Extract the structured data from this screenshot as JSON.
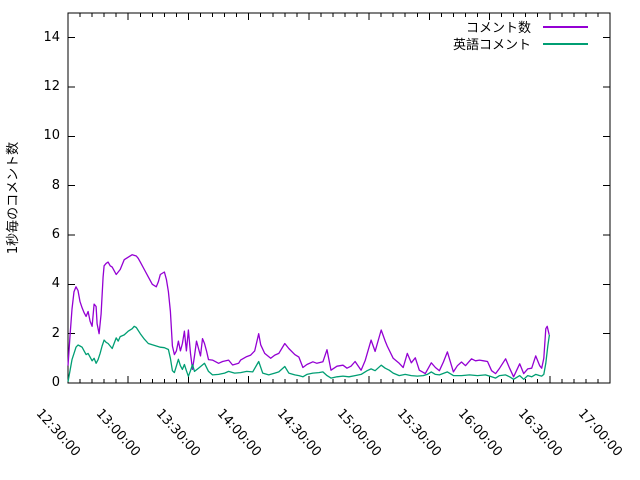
{
  "figure": {
    "background": "#ffffff",
    "frame_color": "#000000",
    "text_color": "#000000"
  },
  "chart_data": {
    "type": "line",
    "title": "",
    "xlabel": "",
    "ylabel": "1秒毎のコメント数",
    "grid": false,
    "legend_position": "top-right-inside",
    "x_ticks": [
      "12:30:00",
      "13:00:00",
      "13:30:00",
      "14:00:00",
      "14:30:00",
      "15:00:00",
      "15:30:00",
      "16:00:00",
      "16:30:00",
      "17:00:00"
    ],
    "x_major_step_minutes": 30,
    "x_minor_step_minutes": 6,
    "xlim_minutes": [
      0,
      270
    ],
    "y_ticks": [
      0,
      2,
      4,
      6,
      8,
      10,
      12,
      14
    ],
    "ylim": [
      0,
      15
    ],
    "series": [
      {
        "name": "コメント数",
        "color": "#9400d3",
        "points": [
          [
            0,
            0.7
          ],
          [
            1,
            1.9
          ],
          [
            2,
            3.0
          ],
          [
            3,
            3.7
          ],
          [
            4,
            3.9
          ],
          [
            5,
            3.75
          ],
          [
            6,
            3.3
          ],
          [
            7,
            3.05
          ],
          [
            8,
            2.85
          ],
          [
            9,
            2.7
          ],
          [
            10,
            2.9
          ],
          [
            11,
            2.5
          ],
          [
            12,
            2.3
          ],
          [
            13,
            3.2
          ],
          [
            14,
            3.1
          ],
          [
            14.5,
            2.4
          ],
          [
            15.5,
            2.0
          ],
          [
            16.5,
            2.8
          ],
          [
            17.5,
            4.3
          ],
          [
            18,
            4.75
          ],
          [
            19,
            4.85
          ],
          [
            20,
            4.9
          ],
          [
            21,
            4.75
          ],
          [
            22,
            4.7
          ],
          [
            24,
            4.4
          ],
          [
            25,
            4.5
          ],
          [
            26,
            4.6
          ],
          [
            27,
            4.8
          ],
          [
            28,
            5.0
          ],
          [
            30,
            5.1
          ],
          [
            32,
            5.2
          ],
          [
            34,
            5.15
          ],
          [
            35,
            5.05
          ],
          [
            36,
            4.9
          ],
          [
            38,
            4.6
          ],
          [
            40,
            4.3
          ],
          [
            42,
            4.0
          ],
          [
            44,
            3.9
          ],
          [
            45,
            4.1
          ],
          [
            46,
            4.4
          ],
          [
            48,
            4.5
          ],
          [
            49,
            4.2
          ],
          [
            50,
            3.7
          ],
          [
            51,
            2.9
          ],
          [
            52,
            1.5
          ],
          [
            53,
            1.15
          ],
          [
            54,
            1.3
          ],
          [
            55,
            1.7
          ],
          [
            56,
            1.3
          ],
          [
            57,
            1.6
          ],
          [
            58,
            2.1
          ],
          [
            59,
            1.3
          ],
          [
            60,
            2.15
          ],
          [
            61,
            1.2
          ],
          [
            62,
            0.55
          ],
          [
            63,
            1.1
          ],
          [
            64,
            1.7
          ],
          [
            65,
            1.4
          ],
          [
            66,
            1.1
          ],
          [
            67,
            1.8
          ],
          [
            68,
            1.6
          ],
          [
            69,
            1.3
          ],
          [
            70,
            0.95
          ],
          [
            72,
            0.93
          ],
          [
            75,
            0.8
          ],
          [
            77,
            0.87
          ],
          [
            80,
            0.93
          ],
          [
            82,
            0.73
          ],
          [
            85,
            0.8
          ],
          [
            86,
            0.93
          ],
          [
            89,
            1.07
          ],
          [
            91,
            1.13
          ],
          [
            93,
            1.3
          ],
          [
            95,
            2.0
          ],
          [
            96,
            1.55
          ],
          [
            98,
            1.2
          ],
          [
            101,
            1.0
          ],
          [
            103,
            1.13
          ],
          [
            105,
            1.2
          ],
          [
            108,
            1.6
          ],
          [
            110,
            1.4
          ],
          [
            113,
            1.15
          ],
          [
            115,
            1.05
          ],
          [
            117,
            0.63
          ],
          [
            119,
            0.75
          ],
          [
            122,
            0.86
          ],
          [
            124,
            0.8
          ],
          [
            127,
            0.86
          ],
          [
            129,
            1.35
          ],
          [
            131,
            0.52
          ],
          [
            134,
            0.68
          ],
          [
            137,
            0.72
          ],
          [
            139,
            0.6
          ],
          [
            141,
            0.68
          ],
          [
            143,
            0.87
          ],
          [
            146,
            0.52
          ],
          [
            148,
            0.9
          ],
          [
            151,
            1.74
          ],
          [
            153,
            1.28
          ],
          [
            156,
            2.15
          ],
          [
            158,
            1.7
          ],
          [
            159,
            1.5
          ],
          [
            162,
            1.0
          ],
          [
            165,
            0.8
          ],
          [
            167,
            0.63
          ],
          [
            169,
            1.2
          ],
          [
            171,
            0.82
          ],
          [
            173,
            1.02
          ],
          [
            175,
            0.52
          ],
          [
            178,
            0.38
          ],
          [
            181,
            0.82
          ],
          [
            183,
            0.63
          ],
          [
            185,
            0.5
          ],
          [
            187,
            0.85
          ],
          [
            189,
            1.26
          ],
          [
            192,
            0.45
          ],
          [
            194,
            0.7
          ],
          [
            196,
            0.85
          ],
          [
            198,
            0.7
          ],
          [
            201,
            0.98
          ],
          [
            203,
            0.9
          ],
          [
            205,
            0.93
          ],
          [
            207,
            0.9
          ],
          [
            209,
            0.87
          ],
          [
            211,
            0.5
          ],
          [
            213,
            0.38
          ],
          [
            215,
            0.6
          ],
          [
            218,
            0.98
          ],
          [
            220,
            0.6
          ],
          [
            222,
            0.25
          ],
          [
            225,
            0.78
          ],
          [
            227,
            0.38
          ],
          [
            229,
            0.57
          ],
          [
            231,
            0.6
          ],
          [
            233,
            1.1
          ],
          [
            235,
            0.7
          ],
          [
            236,
            0.6
          ],
          [
            237,
            1.0
          ],
          [
            238,
            2.2
          ],
          [
            238.7,
            2.3
          ],
          [
            239.7,
            1.95
          ]
        ]
      },
      {
        "name": "英語コメント",
        "color": "#009e73",
        "points": [
          [
            0,
            0.05
          ],
          [
            1,
            0.5
          ],
          [
            2,
            0.95
          ],
          [
            3,
            1.2
          ],
          [
            4,
            1.45
          ],
          [
            5,
            1.54
          ],
          [
            6,
            1.5
          ],
          [
            7,
            1.45
          ],
          [
            8,
            1.3
          ],
          [
            9,
            1.15
          ],
          [
            10,
            1.2
          ],
          [
            11,
            1.05
          ],
          [
            12,
            0.9
          ],
          [
            13,
            1.0
          ],
          [
            14,
            0.8
          ],
          [
            15,
            0.95
          ],
          [
            16,
            1.2
          ],
          [
            17,
            1.5
          ],
          [
            18,
            1.74
          ],
          [
            19,
            1.65
          ],
          [
            20,
            1.6
          ],
          [
            22,
            1.4
          ],
          [
            24,
            1.83
          ],
          [
            25,
            1.7
          ],
          [
            26,
            1.88
          ],
          [
            28,
            1.95
          ],
          [
            30,
            2.1
          ],
          [
            32,
            2.2
          ],
          [
            33,
            2.3
          ],
          [
            34,
            2.25
          ],
          [
            36,
            2.0
          ],
          [
            38,
            1.78
          ],
          [
            40,
            1.6
          ],
          [
            42,
            1.55
          ],
          [
            44,
            1.5
          ],
          [
            46,
            1.45
          ],
          [
            48,
            1.43
          ],
          [
            50,
            1.36
          ],
          [
            51,
            1.0
          ],
          [
            52,
            0.5
          ],
          [
            53,
            0.42
          ],
          [
            55,
            0.96
          ],
          [
            56,
            0.7
          ],
          [
            57,
            0.55
          ],
          [
            58,
            0.75
          ],
          [
            59,
            0.5
          ],
          [
            60,
            0.27
          ],
          [
            61,
            0.5
          ],
          [
            62,
            0.75
          ],
          [
            63,
            0.47
          ],
          [
            65,
            0.6
          ],
          [
            68,
            0.8
          ],
          [
            70,
            0.47
          ],
          [
            72,
            0.33
          ],
          [
            75,
            0.35
          ],
          [
            78,
            0.4
          ],
          [
            80,
            0.47
          ],
          [
            83,
            0.4
          ],
          [
            86,
            0.42
          ],
          [
            89,
            0.47
          ],
          [
            92,
            0.45
          ],
          [
            95,
            0.87
          ],
          [
            97,
            0.4
          ],
          [
            100,
            0.33
          ],
          [
            103,
            0.4
          ],
          [
            105,
            0.45
          ],
          [
            108,
            0.67
          ],
          [
            110,
            0.4
          ],
          [
            113,
            0.33
          ],
          [
            115,
            0.3
          ],
          [
            117,
            0.25
          ],
          [
            119,
            0.35
          ],
          [
            122,
            0.4
          ],
          [
            125,
            0.42
          ],
          [
            127,
            0.45
          ],
          [
            129,
            0.3
          ],
          [
            131,
            0.2
          ],
          [
            134,
            0.25
          ],
          [
            137,
            0.28
          ],
          [
            140,
            0.25
          ],
          [
            143,
            0.3
          ],
          [
            146,
            0.35
          ],
          [
            149,
            0.5
          ],
          [
            151,
            0.57
          ],
          [
            153,
            0.5
          ],
          [
            156,
            0.72
          ],
          [
            158,
            0.6
          ],
          [
            160,
            0.52
          ],
          [
            162,
            0.4
          ],
          [
            165,
            0.3
          ],
          [
            168,
            0.35
          ],
          [
            171,
            0.3
          ],
          [
            174,
            0.28
          ],
          [
            177,
            0.3
          ],
          [
            179,
            0.35
          ],
          [
            181,
            0.45
          ],
          [
            183,
            0.35
          ],
          [
            185,
            0.33
          ],
          [
            189,
            0.45
          ],
          [
            192,
            0.3
          ],
          [
            196,
            0.3
          ],
          [
            200,
            0.33
          ],
          [
            204,
            0.3
          ],
          [
            208,
            0.33
          ],
          [
            211,
            0.25
          ],
          [
            213,
            0.2
          ],
          [
            215,
            0.3
          ],
          [
            218,
            0.33
          ],
          [
            220,
            0.25
          ],
          [
            222,
            0.15
          ],
          [
            225,
            0.3
          ],
          [
            227,
            0.15
          ],
          [
            229,
            0.3
          ],
          [
            231,
            0.25
          ],
          [
            233,
            0.35
          ],
          [
            235,
            0.3
          ],
          [
            236,
            0.28
          ],
          [
            237,
            0.35
          ],
          [
            238,
            0.8
          ],
          [
            239,
            1.5
          ],
          [
            239.8,
            1.95
          ]
        ]
      }
    ]
  }
}
